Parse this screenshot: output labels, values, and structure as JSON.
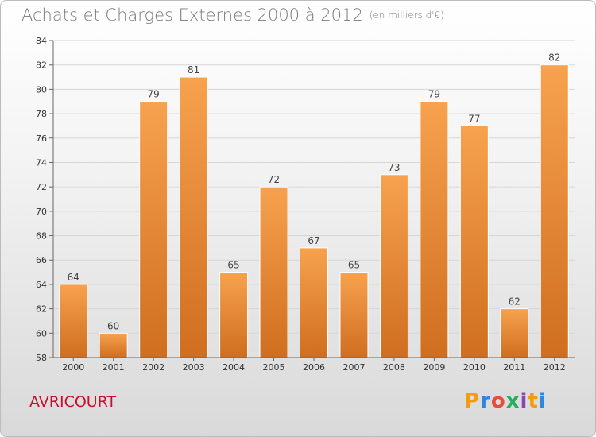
{
  "header": {
    "title": "Achats et Charges Externes 2000 à 2012",
    "unit": "(en milliers d'€)"
  },
  "footer": {
    "commune": "AVRICOURT",
    "logo_letters": [
      "P",
      "r",
      "o",
      "x",
      "i",
      "t",
      "i"
    ],
    "logo_colors": [
      "#f39c12",
      "#2e86de",
      "#e74c3c",
      "#27ae60",
      "#8e44ad",
      "#f39c12",
      "#2e86de"
    ]
  },
  "colors": {
    "bar_light": "#f7a24e",
    "bar_dark": "#cf6e1f",
    "commune": "#c8102e",
    "title": "#7a7a7a"
  },
  "chart_data": {
    "type": "bar",
    "title": "Achats et Charges Externes 2000 à 2012",
    "subtitle": "(en milliers d'€)",
    "categories": [
      "2000",
      "2001",
      "2002",
      "2003",
      "2004",
      "2005",
      "2006",
      "2007",
      "2008",
      "2009",
      "2010",
      "2011",
      "2012"
    ],
    "values": [
      64,
      60,
      79,
      81,
      65,
      72,
      67,
      65,
      73,
      79,
      77,
      62,
      82
    ],
    "ylim": [
      58,
      84
    ],
    "yticks": [
      58,
      60,
      62,
      64,
      66,
      68,
      70,
      72,
      74,
      76,
      78,
      80,
      82,
      84
    ],
    "grid": true,
    "legend": "none"
  }
}
